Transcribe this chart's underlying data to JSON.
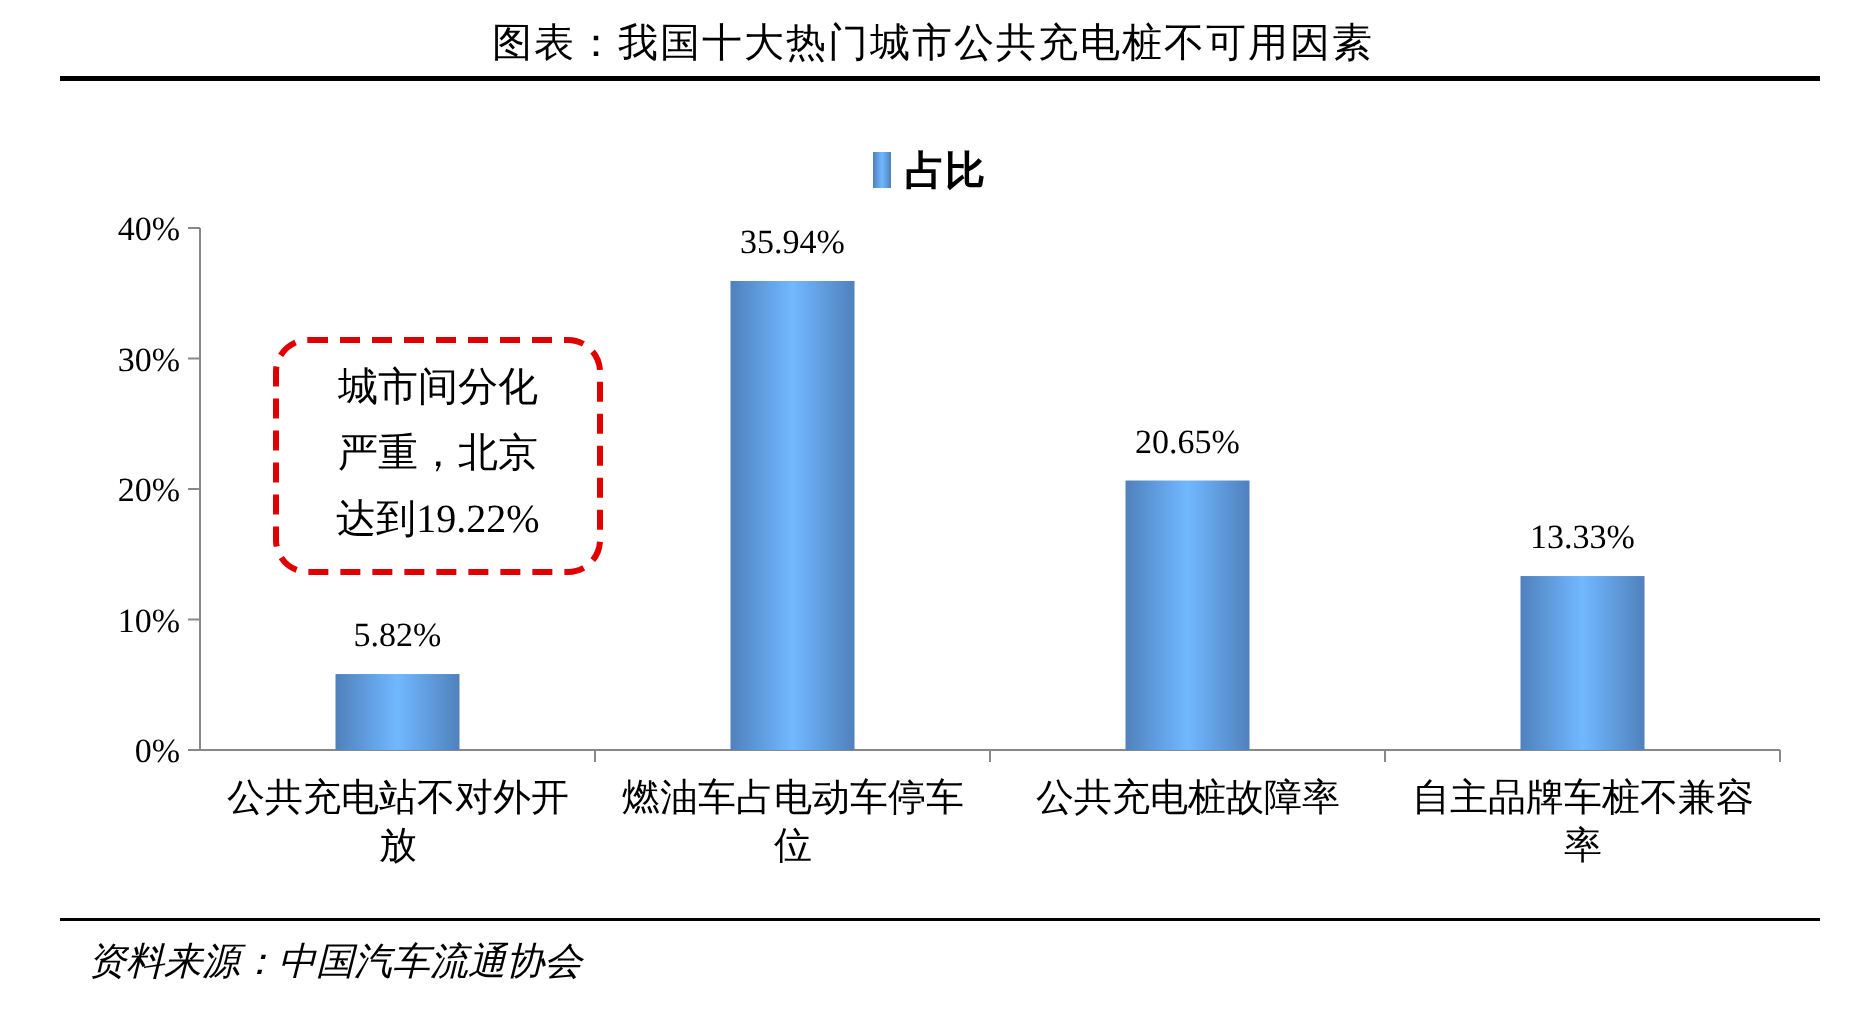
{
  "chart_data": {
    "type": "bar",
    "title": "图表：我国十大热门城市公共充电桩不可用因素",
    "categories": [
      "公共充电站不对外开放",
      "燃油车占电动车停车位",
      "公共充电桩故障率",
      "自主品牌车桩不兼容率"
    ],
    "series": [
      {
        "name": "占比",
        "color": "#4f81bd",
        "values": [
          5.82,
          35.94,
          20.65,
          13.33
        ],
        "value_labels": [
          "5.82%",
          "35.94%",
          "20.65%",
          "13.33%"
        ]
      }
    ],
    "ylim": [
      0,
      40
    ],
    "yticks": [
      {
        "value": 0,
        "label": "0%"
      },
      {
        "value": 10,
        "label": "10%"
      },
      {
        "value": 20,
        "label": "20%"
      },
      {
        "value": 30,
        "label": "30%"
      },
      {
        "value": 40,
        "label": "40%"
      }
    ],
    "legend": "top",
    "annotations": [
      "城市间分化严重，北京达到19.22%",
      "资料来源：中国汽车流通协会"
    ]
  }
}
